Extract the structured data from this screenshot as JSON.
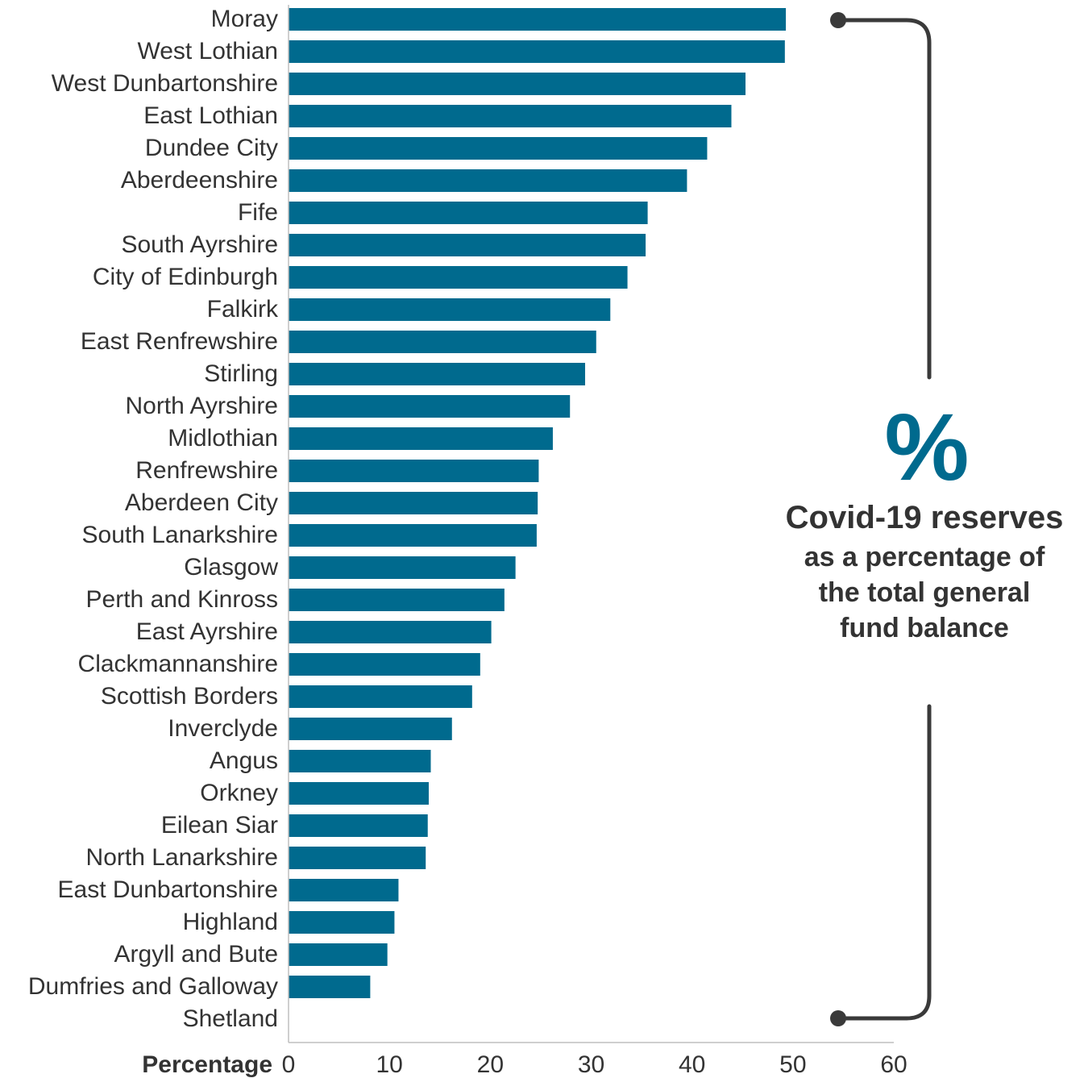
{
  "chart_data": {
    "type": "bar",
    "orientation": "horizontal",
    "categories": [
      "Moray",
      "West Lothian",
      "West Dunbartonshire",
      "East Lothian",
      "Dundee City",
      "Aberdeenshire",
      "Fife",
      "South Ayrshire",
      "City of Edinburgh",
      "Falkirk",
      "East Renfrewshire",
      "Stirling",
      "North Ayrshire",
      "Midlothian",
      "Renfrewshire",
      "Aberdeen City",
      "South Lanarkshire",
      "Glasgow",
      "Perth and Kinross",
      "East Ayrshire",
      "Clackmannanshire",
      "Scottish Borders",
      "Inverclyde",
      "Angus",
      "Orkney",
      "Eilean Siar",
      "North Lanarkshire",
      "East Dunbartonshire",
      "Highland",
      "Argyll and Bute",
      "Dumfries and Galloway",
      "Shetland"
    ],
    "values": [
      49.3,
      49.2,
      45.3,
      43.9,
      41.5,
      39.5,
      35.6,
      35.4,
      33.6,
      31.9,
      30.5,
      29.4,
      27.9,
      26.2,
      24.8,
      24.7,
      24.6,
      22.5,
      21.4,
      20.1,
      19.0,
      18.2,
      16.2,
      14.1,
      13.9,
      13.8,
      13.6,
      10.9,
      10.5,
      9.8,
      8.1,
      0
    ],
    "xlabel": "Percentage",
    "xlim": [
      0,
      60
    ],
    "xticks": [
      0,
      10,
      20,
      30,
      40,
      50,
      60
    ],
    "grid": false,
    "colors": {
      "bar": "#006a8e",
      "axis": "#bfbfbf",
      "bracket": "#3a3a3a",
      "accent": "#006a8e",
      "text": "#333333"
    },
    "annotation": {
      "symbol": "%",
      "title": "Covid-19 reserves",
      "lines": [
        "as a percentage of",
        "the total general",
        "fund balance"
      ]
    }
  }
}
